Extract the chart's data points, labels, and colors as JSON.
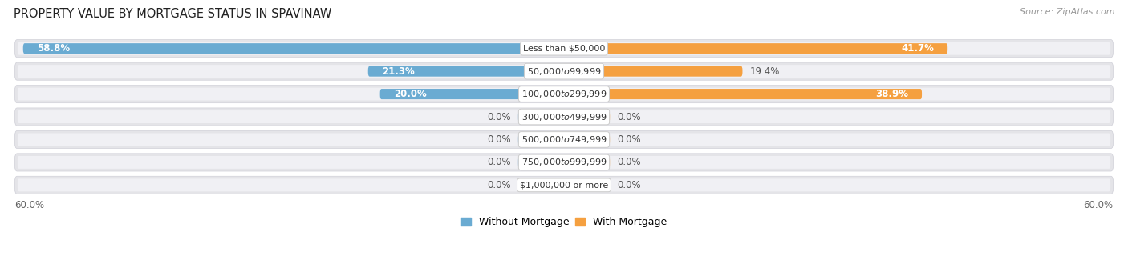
{
  "title": "PROPERTY VALUE BY MORTGAGE STATUS IN SPAVINAW",
  "source": "Source: ZipAtlas.com",
  "categories": [
    "Less than $50,000",
    "$50,000 to $99,999",
    "$100,000 to $299,999",
    "$300,000 to $499,999",
    "$500,000 to $749,999",
    "$750,000 to $999,999",
    "$1,000,000 or more"
  ],
  "without_mortgage": [
    58.8,
    21.3,
    20.0,
    0.0,
    0.0,
    0.0,
    0.0
  ],
  "with_mortgage": [
    41.7,
    19.4,
    38.9,
    0.0,
    0.0,
    0.0,
    0.0
  ],
  "color_without": "#6aabd2",
  "color_with": "#f5a040",
  "color_without_zero": "#aecde8",
  "color_with_zero": "#f8cfa0",
  "axis_limit": 60.0,
  "bar_row_bg": "#e4e4e8",
  "bar_row_bg_inner": "#f0f0f4",
  "fig_bg": "#ffffff",
  "title_fontsize": 10.5,
  "source_fontsize": 8,
  "value_fontsize": 8.5,
  "cat_fontsize": 8,
  "legend_fontsize": 9,
  "axis_label_fontsize": 8.5,
  "zero_bar_width": 5.0
}
